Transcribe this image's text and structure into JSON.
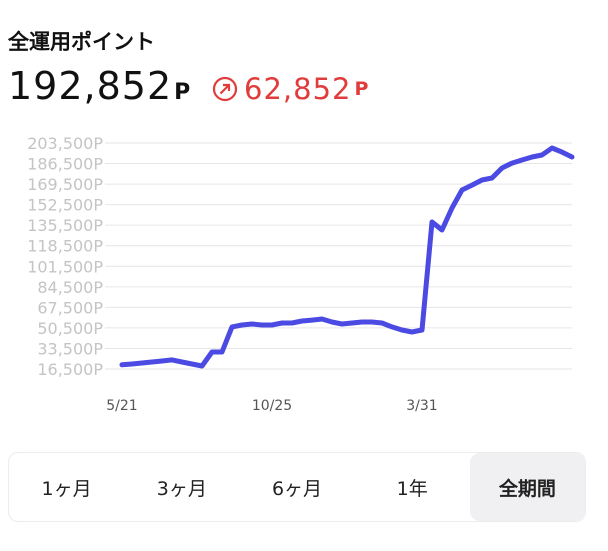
{
  "header": {
    "title": "全運用ポイント",
    "total": "192,852",
    "total_unit": "P",
    "change": "62,852",
    "change_unit": "P"
  },
  "chart_data": {
    "type": "line",
    "categories": [
      "5/21",
      null,
      null,
      null,
      null,
      null,
      null,
      null,
      null,
      null,
      null,
      null,
      null,
      null,
      null,
      "10/25",
      null,
      null,
      null,
      null,
      null,
      null,
      null,
      null,
      null,
      null,
      null,
      null,
      null,
      null,
      "3/31",
      null,
      null,
      null,
      null,
      null,
      null,
      null,
      null,
      null,
      null,
      null,
      null,
      null,
      null,
      null
    ],
    "values": [
      20000,
      20600,
      21500,
      22300,
      23100,
      24000,
      22300,
      20600,
      19000,
      30600,
      30600,
      51300,
      52900,
      53700,
      52900,
      52900,
      54600,
      54600,
      56200,
      57000,
      57900,
      55400,
      53700,
      54600,
      55400,
      55400,
      54600,
      51300,
      48800,
      47100,
      48800,
      138100,
      131500,
      149700,
      164600,
      168700,
      172900,
      174500,
      182800,
      186900,
      189400,
      191900,
      193600,
      199400,
      196000,
      191900
    ],
    "color": "#4b4be3",
    "ylim": [
      10000,
      210000
    ],
    "yticks": [
      {
        "value": 16500,
        "label": "16,500P"
      },
      {
        "value": 33500,
        "label": "33,500P"
      },
      {
        "value": 50500,
        "label": "50,500P"
      },
      {
        "value": 67500,
        "label": "67,500P"
      },
      {
        "value": 84500,
        "label": "84,500P"
      },
      {
        "value": 101500,
        "label": "101,500P"
      },
      {
        "value": 118500,
        "label": "118,500P"
      },
      {
        "value": 135500,
        "label": "135,500P"
      },
      {
        "value": 152500,
        "label": "152,500P"
      },
      {
        "value": 169500,
        "label": "169,500P"
      },
      {
        "value": 186500,
        "label": "186,500P"
      },
      {
        "value": 203500,
        "label": "203,500P"
      }
    ],
    "grid": true
  },
  "tabs": {
    "items": [
      "1ヶ月",
      "3ヶ月",
      "6ヶ月",
      "1年",
      "全期間"
    ],
    "selected": 4
  }
}
